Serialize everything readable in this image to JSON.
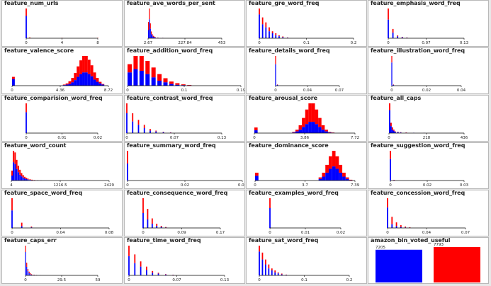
{
  "colors": {
    "class0": "#0000ff",
    "class1": "#ff0000",
    "background": "#e8e8e8",
    "panel": "#ffffff"
  },
  "chart_data": [
    {
      "type": "bar",
      "title": "feature_num_urls",
      "ticks": [
        "0",
        "4",
        "8"
      ],
      "xlim": [
        0,
        8
      ],
      "hist": {
        "x": [
          0,
          0.4,
          4,
          8
        ],
        "blue": [
          30,
          0,
          0,
          0
        ],
        "red": [
          10,
          1,
          0.5,
          0.5
        ]
      }
    },
    {
      "type": "bar",
      "title": "feature_ave_words_per_sent",
      "ticks": [
        "2.67",
        "227.84",
        "453"
      ],
      "xlim": [
        2.67,
        453
      ],
      "hist": {
        "x": [
          2.67,
          8,
          14,
          20,
          26,
          32,
          38,
          44,
          60,
          90
        ],
        "blue": [
          6,
          14,
          7,
          3,
          2,
          1,
          0.8,
          0.5,
          0.3,
          0.2
        ],
        "red": [
          6,
          8,
          4,
          2,
          1,
          0.8,
          0.5,
          0.3,
          0.2,
          0.1
        ]
      }
    },
    {
      "type": "bar",
      "title": "feature_gre_word_freq",
      "ticks": [
        "0",
        "0.1",
        "0.2"
      ],
      "xlim": [
        0,
        0.2
      ],
      "hist": {
        "x": [
          0,
          0.007,
          0.014,
          0.021,
          0.028,
          0.035,
          0.042,
          0.05,
          0.06
        ],
        "blue": [
          24,
          14,
          11,
          7,
          5,
          3,
          2,
          1,
          0.5
        ],
        "red": [
          6,
          7,
          5,
          4,
          2,
          2,
          1,
          0.8,
          0.3
        ]
      }
    },
    {
      "type": "bar",
      "title": "feature_emphasis_word_freq",
      "ticks": [
        "0",
        "0.07",
        "0.13"
      ],
      "xlim": [
        0,
        0.13
      ],
      "hist": {
        "x": [
          0,
          0.008,
          0.016,
          0.024,
          0.032
        ],
        "blue": [
          20,
          6,
          2,
          1,
          0.5
        ],
        "red": [
          12,
          4,
          1,
          0.5,
          0.3
        ]
      }
    },
    {
      "type": "bar",
      "title": "feature_valence_score",
      "ticks": [
        "0",
        "4.36",
        "8.72"
      ],
      "xlim": [
        0,
        8.72
      ],
      "hist": {
        "x": [
          0,
          4.6,
          4.85,
          5.1,
          5.35,
          5.6,
          5.85,
          6.1,
          6.35,
          6.6,
          6.85,
          7.1,
          7.35,
          7.6,
          7.85,
          8.1
        ],
        "blue": [
          12,
          1,
          2,
          3,
          6,
          10,
          16,
          21,
          24,
          24,
          21,
          17,
          11,
          7,
          4,
          2
        ],
        "red": [
          4,
          1,
          2,
          5,
          8,
          13,
          19,
          25,
          30,
          30,
          26,
          20,
          13,
          7,
          3,
          1
        ]
      }
    },
    {
      "type": "bar",
      "title": "feature_addition_word_freq",
      "ticks": [
        "0",
        "0.1",
        "0.19"
      ],
      "xlim": [
        0,
        0.19
      ],
      "hist": {
        "x": [
          0,
          0.01,
          0.02,
          0.03,
          0.04,
          0.05,
          0.06,
          0.07,
          0.08,
          0.09,
          0.1
        ],
        "blue": [
          16,
          20,
          18,
          14,
          10,
          6,
          4,
          2,
          1,
          0.6,
          0.3
        ],
        "red": [
          10,
          16,
          18,
          16,
          12,
          8,
          5,
          3,
          2,
          1,
          0.5
        ]
      }
    },
    {
      "type": "bar",
      "title": "feature_details_word_freq",
      "ticks": [
        "0",
        "0.04",
        "0.07"
      ],
      "xlim": [
        0,
        0.07
      ],
      "hist": {
        "x": [
          0,
          0.002
        ],
        "blue": [
          26,
          1
        ],
        "red": [
          10,
          0.5
        ]
      }
    },
    {
      "type": "bar",
      "title": "feature_illustration_word_freq",
      "ticks": [
        "0",
        "0.02",
        "0.04"
      ],
      "xlim": [
        0,
        0.04
      ],
      "hist": {
        "x": [
          0,
          0.001
        ],
        "blue": [
          28,
          1
        ],
        "red": [
          8,
          0.5
        ]
      }
    },
    {
      "type": "bar",
      "title": "feature_comparision_word_freq",
      "ticks": [
        "0",
        "0.01",
        "0.02"
      ],
      "xlim": [
        0,
        0.02
      ],
      "hist": {
        "x": [
          0
        ],
        "blue": [
          28
        ],
        "red": [
          12
        ]
      }
    },
    {
      "type": "bar",
      "title": "feature_contrast_word_freq",
      "ticks": [
        "0",
        "0.07",
        "0.13"
      ],
      "xlim": [
        0,
        0.13
      ],
      "hist": {
        "x": [
          0,
          0.008,
          0.016,
          0.024,
          0.032,
          0.04,
          0.05,
          0.06
        ],
        "blue": [
          24,
          14,
          10,
          6,
          3,
          2,
          1,
          0.5
        ],
        "red": [
          12,
          10,
          6,
          4,
          2,
          1,
          0.5,
          0.3
        ]
      }
    },
    {
      "type": "bar",
      "title": "feature_arousal_score",
      "ticks": [
        "0",
        "3.86",
        "7.72"
      ],
      "xlim": [
        0,
        7.72
      ],
      "hist": {
        "x": [
          0,
          2.9,
          3.15,
          3.4,
          3.65,
          3.9,
          4.15,
          4.4,
          4.65,
          4.9,
          5.15,
          5.4,
          5.65,
          5.9
        ],
        "blue": [
          5,
          1,
          3,
          6,
          11,
          16,
          20,
          20,
          16,
          11,
          6,
          3,
          1,
          0.5
        ],
        "red": [
          5,
          1,
          3,
          8,
          16,
          26,
          33,
          33,
          26,
          16,
          8,
          3,
          1,
          0.5
        ]
      }
    },
    {
      "type": "bar",
      "title": "feature_all_caps",
      "ticks": [
        "0",
        "218",
        "436"
      ],
      "xlim": [
        0,
        436
      ],
      "hist": {
        "x": [
          0,
          8,
          16,
          24,
          32,
          48,
          64,
          96,
          140,
          200
        ],
        "blue": [
          20,
          6,
          3,
          2,
          1,
          0.8,
          0.5,
          0.3,
          0.2,
          0.1
        ],
        "red": [
          6,
          3,
          2,
          1,
          0.5,
          0.4,
          0.3,
          0.2,
          0.1,
          0.1
        ]
      }
    },
    {
      "type": "bar",
      "title": "feature_word_count",
      "ticks": [
        "4",
        "1216.5",
        "2429"
      ],
      "xlim": [
        4,
        2429
      ],
      "hist": {
        "x": [
          4,
          40,
          80,
          120,
          160,
          200,
          240,
          280,
          320,
          360,
          400,
          450,
          500,
          560,
          640,
          720
        ],
        "blue": [
          6,
          22,
          20,
          14,
          10,
          7,
          5,
          3.5,
          2.5,
          1.8,
          1.2,
          0.8,
          0.5,
          0.3,
          0.2,
          0.1
        ],
        "red": [
          6,
          14,
          14,
          11,
          8,
          6,
          4,
          3,
          2,
          1.5,
          1,
          0.7,
          0.5,
          0.3,
          0.2,
          0.1
        ]
      }
    },
    {
      "type": "bar",
      "title": "feature_summary_word_freq",
      "ticks": [
        "0",
        "0.02",
        "0.04"
      ],
      "xlim": [
        0,
        0.04
      ],
      "hist": {
        "x": [
          0
        ],
        "blue": [
          16
        ],
        "red": [
          12
        ]
      }
    },
    {
      "type": "bar",
      "title": "feature_dominance_score",
      "ticks": [
        "0",
        "3.7",
        "7.39"
      ],
      "xlim": [
        0,
        7.39
      ],
      "hist": {
        "x": [
          0,
          4.7,
          4.95,
          5.2,
          5.45,
          5.7,
          5.95,
          6.2,
          6.45,
          6.7,
          6.95
        ],
        "blue": [
          6,
          2,
          5,
          10,
          15,
          18,
          15,
          10,
          5,
          2,
          0.5
        ],
        "red": [
          4,
          2,
          5,
          10,
          16,
          20,
          16,
          10,
          5,
          2,
          0.5
        ]
      }
    },
    {
      "type": "bar",
      "title": "feature_suggestion_word_freq",
      "ticks": [
        "0",
        "0.02",
        "0.03"
      ],
      "xlim": [
        0,
        0.03
      ],
      "hist": {
        "x": [
          0,
          0.0015
        ],
        "blue": [
          26,
          0.5
        ],
        "red": [
          10,
          0.3
        ]
      }
    },
    {
      "type": "bar",
      "title": "feature_space_word_freq",
      "ticks": [
        "0",
        "0.04",
        "0.08"
      ],
      "xlim": [
        0,
        0.08
      ],
      "hist": {
        "x": [
          0,
          0.008,
          0.016
        ],
        "blue": [
          20,
          2,
          0.6
        ],
        "red": [
          14,
          4,
          1
        ]
      }
    },
    {
      "type": "bar",
      "title": "feature_consequence_word_freq",
      "ticks": [
        "0",
        "0.09",
        "0.17"
      ],
      "xlim": [
        0,
        0.17
      ],
      "hist": {
        "x": [
          0,
          0.01,
          0.02,
          0.03,
          0.04,
          0.05
        ],
        "blue": [
          14,
          8,
          4,
          2,
          1,
          0.4
        ],
        "red": [
          14,
          10,
          5,
          2,
          1,
          0.5
        ]
      }
    },
    {
      "type": "bar",
      "title": "feature_examples_word_freq",
      "ticks": [
        "0",
        "0.01",
        "0.02"
      ],
      "xlim": [
        0,
        0.02
      ],
      "hist": {
        "x": [
          0
        ],
        "blue": [
          24
        ],
        "red": [
          12
        ]
      }
    },
    {
      "type": "bar",
      "title": "feature_concession_word_freq",
      "ticks": [
        "0",
        "0.04",
        "0.07"
      ],
      "xlim": [
        0,
        0.07
      ],
      "hist": {
        "x": [
          0,
          0.004,
          0.008,
          0.012,
          0.016,
          0.02
        ],
        "blue": [
          22,
          4,
          2,
          1,
          0.5,
          0.2
        ],
        "red": [
          10,
          8,
          4,
          2,
          1,
          0.5
        ]
      }
    },
    {
      "type": "bar",
      "title": "feature_caps_err",
      "ticks": [
        "0",
        "29.5",
        "59"
      ],
      "xlim": [
        0,
        59
      ],
      "hist": {
        "x": [
          0,
          1,
          2,
          3,
          4,
          5,
          7,
          9,
          12
        ],
        "blue": [
          22,
          8,
          4,
          2,
          1,
          0.6,
          0.4,
          0.2,
          0.1
        ],
        "red": [
          6,
          4,
          2,
          1.5,
          1,
          0.5,
          0.3,
          0.2,
          0.1
        ]
      }
    },
    {
      "type": "bar",
      "title": "feature_time_word_freq",
      "ticks": [
        "0",
        "0.07",
        "0.13"
      ],
      "xlim": [
        0,
        0.13
      ],
      "hist": {
        "x": [
          0,
          0.008,
          0.016,
          0.024,
          0.032,
          0.04,
          0.05,
          0.06
        ],
        "blue": [
          22,
          14,
          10,
          6,
          3,
          2,
          1,
          0.5
        ],
        "red": [
          12,
          10,
          6,
          4,
          2,
          1,
          0.5,
          0.3
        ]
      }
    },
    {
      "type": "bar",
      "title": "feature_sat_word_freq",
      "ticks": [
        "0",
        "0.1",
        "0.2"
      ],
      "xlim": [
        0,
        0.2
      ],
      "hist": {
        "x": [
          0,
          0.007,
          0.014,
          0.021,
          0.028,
          0.035,
          0.042,
          0.05,
          0.06
        ],
        "blue": [
          24,
          16,
          11,
          7,
          5,
          3,
          2,
          1,
          0.5
        ],
        "red": [
          6,
          7,
          5,
          4,
          2,
          2,
          1,
          0.8,
          0.3
        ]
      }
    },
    {
      "type": "bar",
      "title": "amazon_bin_voted_useful",
      "categories": [
        "",
        ""
      ],
      "values": [
        7205,
        7793
      ],
      "labels": [
        "7205",
        "7793"
      ]
    }
  ]
}
